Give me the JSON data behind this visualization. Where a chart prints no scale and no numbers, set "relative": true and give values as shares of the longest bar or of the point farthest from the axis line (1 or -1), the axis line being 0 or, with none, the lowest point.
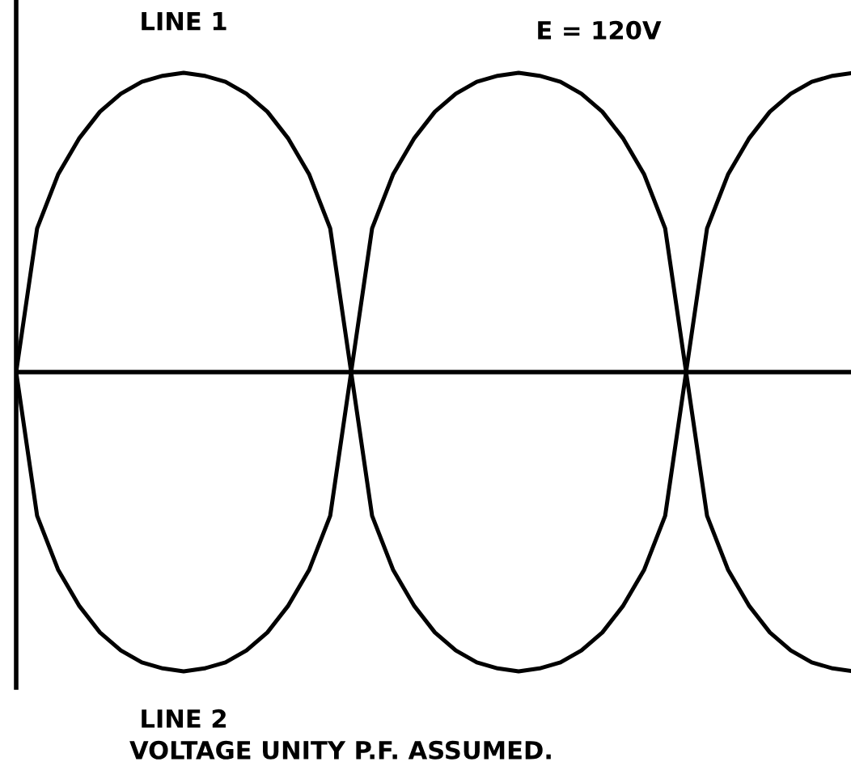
{
  "chart_data": {
    "type": "line",
    "relative": true,
    "categories": [
      null,
      null,
      null,
      null,
      null,
      null,
      null,
      null,
      null,
      null,
      null,
      null,
      null,
      null,
      null,
      null,
      null,
      null,
      null,
      null,
      null,
      null,
      null,
      null,
      null,
      null,
      null,
      null,
      null,
      null,
      null,
      null,
      null,
      null,
      null,
      null,
      null,
      null,
      null,
      null,
      null
    ],
    "series": [
      {
        "name": "LINE 1",
        "color": "#000000",
        "values": [
          0,
          0.48,
          0.66,
          0.78,
          0.87,
          0.93,
          0.97,
          0.99,
          1,
          0.99,
          0.97,
          0.93,
          0.87,
          0.78,
          0.66,
          0.48,
          0,
          -0.48,
          -0.66,
          -0.78,
          -0.87,
          -0.93,
          -0.97,
          -0.99,
          -1,
          -0.99,
          -0.97,
          -0.93,
          -0.87,
          -0.78,
          -0.66,
          -0.48,
          0,
          0.48,
          0.66,
          0.78,
          0.87,
          0.93,
          0.97,
          0.99,
          1
        ]
      },
      {
        "name": "LINE 2",
        "color": "#000000",
        "values": [
          0,
          -0.48,
          -0.66,
          -0.78,
          -0.87,
          -0.93,
          -0.97,
          -0.99,
          -1,
          -0.99,
          -0.97,
          -0.93,
          -0.87,
          -0.78,
          -0.66,
          -0.48,
          0,
          0.48,
          0.66,
          0.78,
          0.87,
          0.93,
          0.97,
          0.99,
          1,
          0.99,
          0.97,
          0.93,
          0.87,
          0.78,
          0.66,
          0.48,
          0,
          -0.48,
          -0.66,
          -0.78,
          -0.87,
          -0.93,
          -0.97,
          -0.99,
          -1
        ]
      }
    ],
    "annotations": [
      "E = 120V",
      "VOLTAGE UNITY P.F. ASSUMED."
    ],
    "marker": "none",
    "line_style": "solid",
    "legend": false
  }
}
